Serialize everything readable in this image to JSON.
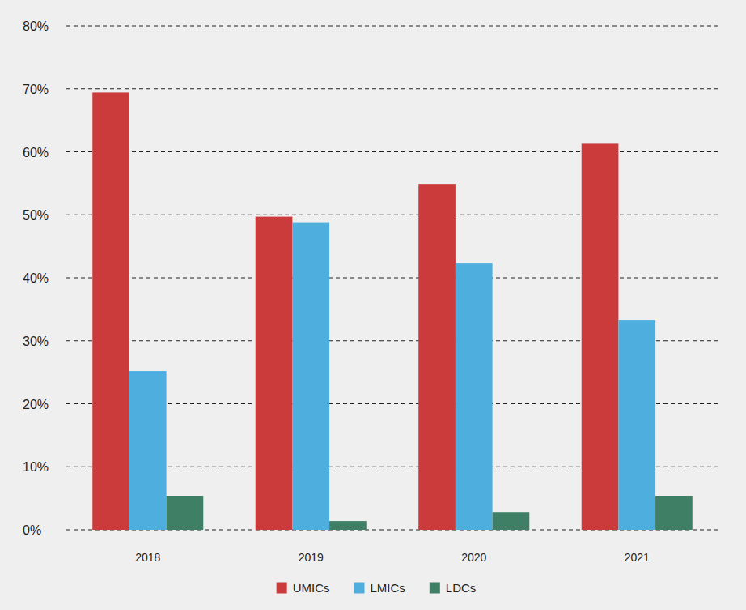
{
  "chart_data": {
    "type": "bar",
    "categories": [
      "2018",
      "2019",
      "2020",
      "2021"
    ],
    "series": [
      {
        "name": "UMICs",
        "color": "#cc3b3b",
        "values": [
          69.4,
          49.7,
          54.9,
          61.3
        ]
      },
      {
        "name": "LMICs",
        "color": "#4eaede",
        "values": [
          25.2,
          48.8,
          42.3,
          33.3
        ]
      },
      {
        "name": "LDCs",
        "color": "#3f7f66",
        "values": [
          5.4,
          1.4,
          2.8,
          5.4
        ]
      }
    ],
    "ylim": [
      0,
      80
    ],
    "yticks": [
      {
        "value": 0,
        "label": "0%"
      },
      {
        "value": 10,
        "label": "10%"
      },
      {
        "value": 20,
        "label": "20%"
      },
      {
        "value": 30,
        "label": "30%"
      },
      {
        "value": 40,
        "label": "40%"
      },
      {
        "value": 50,
        "label": "50%"
      },
      {
        "value": 60,
        "label": "60%"
      },
      {
        "value": 70,
        "label": "70%"
      },
      {
        "value": 80,
        "label": "80%"
      }
    ],
    "grid": true,
    "legend": "bottom"
  }
}
